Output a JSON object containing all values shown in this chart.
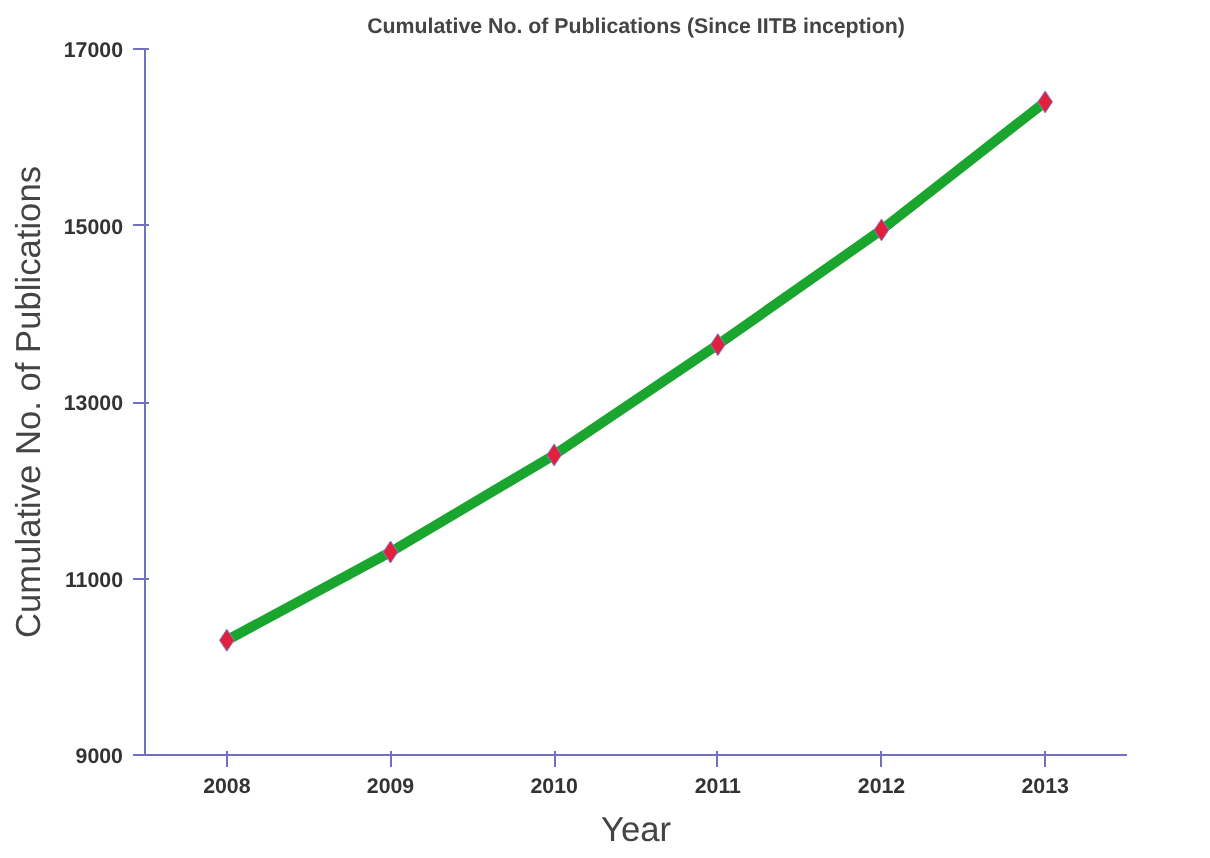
{
  "chart_data": {
    "type": "line",
    "title": "Cumulative No. of Publications (Since IITB inception)",
    "xlabel": "Year",
    "ylabel": "Cumulative No. of Publications",
    "categories": [
      "2008",
      "2009",
      "2010",
      "2011",
      "2012",
      "2013"
    ],
    "series": [
      {
        "color": "#1aa52e",
        "values": [
          10300,
          11300,
          12400,
          13650,
          14950,
          16400
        ]
      }
    ],
    "ylim": [
      9000,
      17000
    ],
    "yticks": [
      9000,
      11000,
      13000,
      15000,
      17000
    ],
    "grid": false,
    "marker": "diamond",
    "line_style": "solid"
  }
}
